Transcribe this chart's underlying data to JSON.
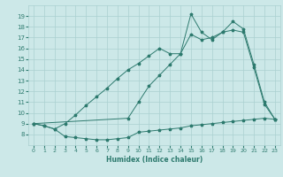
{
  "xlabel": "Humidex (Indice chaleur)",
  "bg_color": "#cce8e8",
  "line_color": "#2d7a6e",
  "grid_color": "#aad0d0",
  "xlim": [
    -0.5,
    23.5
  ],
  "ylim": [
    7,
    20
  ],
  "yticks": [
    8,
    9,
    10,
    11,
    12,
    13,
    14,
    15,
    16,
    17,
    18,
    19
  ],
  "xticks": [
    0,
    1,
    2,
    3,
    4,
    5,
    6,
    7,
    8,
    9,
    10,
    11,
    12,
    13,
    14,
    15,
    16,
    17,
    18,
    19,
    20,
    21,
    22,
    23
  ],
  "line1_x": [
    0,
    1,
    2,
    3,
    4,
    5,
    6,
    7,
    8,
    9,
    10,
    11,
    12,
    13,
    14,
    15,
    16,
    17,
    18,
    19,
    20,
    21,
    22,
    23
  ],
  "line1_y": [
    9.0,
    8.8,
    8.5,
    7.8,
    7.7,
    7.6,
    7.5,
    7.5,
    7.6,
    7.7,
    8.2,
    8.3,
    8.4,
    8.5,
    8.6,
    8.8,
    8.9,
    9.0,
    9.1,
    9.2,
    9.3,
    9.4,
    9.5,
    9.4
  ],
  "line2_x": [
    0,
    1,
    2,
    3,
    4,
    5,
    6,
    7,
    8,
    9,
    10,
    11,
    12,
    13,
    14,
    15,
    16,
    17,
    18,
    19,
    20,
    21,
    22,
    23
  ],
  "line2_y": [
    9.0,
    8.8,
    8.5,
    9.0,
    9.8,
    10.7,
    11.5,
    12.3,
    13.2,
    14.0,
    14.6,
    15.3,
    16.0,
    15.5,
    15.5,
    17.3,
    16.8,
    17.0,
    17.5,
    17.7,
    17.5,
    14.2,
    10.8,
    9.4
  ],
  "line3_x": [
    0,
    9,
    10,
    11,
    12,
    13,
    14,
    15,
    16,
    17,
    18,
    19,
    20,
    21,
    22,
    23
  ],
  "line3_y": [
    9.0,
    9.5,
    11.0,
    12.5,
    13.5,
    14.5,
    15.5,
    19.2,
    17.5,
    16.8,
    17.5,
    18.5,
    17.8,
    14.5,
    11.0,
    9.4
  ]
}
